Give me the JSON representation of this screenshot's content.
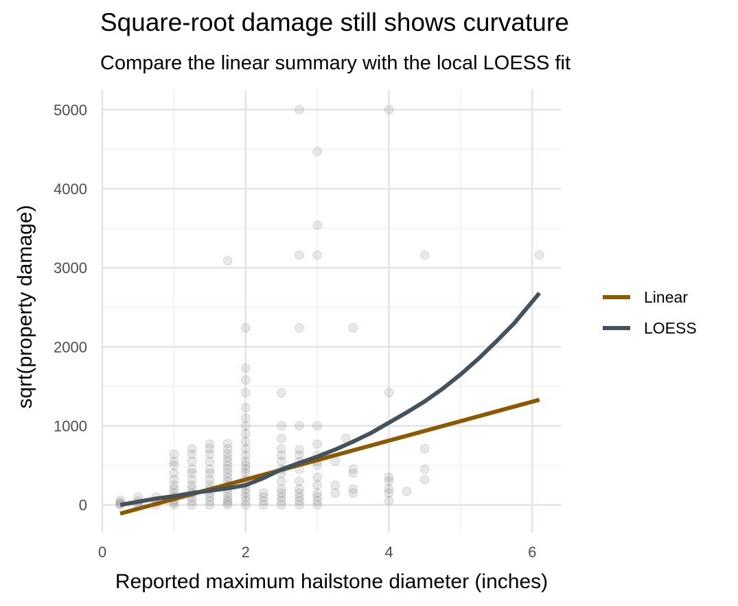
{
  "chart_data": {
    "type": "scatter",
    "title": "Square-root damage still shows curvature",
    "subtitle": "Compare the linear summary with the local LOESS fit",
    "xlabel": "Reported maximum hailstone diameter (inches)",
    "ylabel": "sqrt(property damage)",
    "xlim": [
      0,
      6.4
    ],
    "ylim": [
      -350,
      5250
    ],
    "x_ticks": [
      0,
      2,
      4,
      6
    ],
    "y_ticks": [
      0,
      1000,
      2000,
      3000,
      4000,
      5000
    ],
    "grid": true,
    "legend_position": "right",
    "points": [
      [
        0.25,
        0
      ],
      [
        0.25,
        30
      ],
      [
        0.25,
        60
      ],
      [
        0.25,
        15
      ],
      [
        0.5,
        0
      ],
      [
        0.5,
        50
      ],
      [
        0.5,
        100
      ],
      [
        0.5,
        20
      ],
      [
        0.75,
        30
      ],
      [
        0.75,
        100
      ],
      [
        0.75,
        0
      ],
      [
        1,
        0
      ],
      [
        1,
        30
      ],
      [
        1,
        60
      ],
      [
        1,
        100
      ],
      [
        1,
        150
      ],
      [
        1,
        200
      ],
      [
        1,
        250
      ],
      [
        1,
        320
      ],
      [
        1,
        400
      ],
      [
        1,
        500
      ],
      [
        1,
        550
      ],
      [
        1,
        640
      ],
      [
        1.25,
        0
      ],
      [
        1.25,
        50
      ],
      [
        1.25,
        100
      ],
      [
        1.25,
        150
      ],
      [
        1.25,
        200
      ],
      [
        1.25,
        250
      ],
      [
        1.25,
        320
      ],
      [
        1.25,
        400
      ],
      [
        1.25,
        450
      ],
      [
        1.25,
        550
      ],
      [
        1.25,
        640
      ],
      [
        1.25,
        710
      ],
      [
        1.5,
        0
      ],
      [
        1.5,
        50
      ],
      [
        1.5,
        100
      ],
      [
        1.5,
        150
      ],
      [
        1.5,
        200
      ],
      [
        1.5,
        250
      ],
      [
        1.5,
        320
      ],
      [
        1.5,
        400
      ],
      [
        1.5,
        450
      ],
      [
        1.5,
        550
      ],
      [
        1.5,
        640
      ],
      [
        1.5,
        710
      ],
      [
        1.5,
        770
      ],
      [
        1.75,
        0
      ],
      [
        1.75,
        30
      ],
      [
        1.75,
        60
      ],
      [
        1.75,
        100
      ],
      [
        1.75,
        150
      ],
      [
        1.75,
        200
      ],
      [
        1.75,
        250
      ],
      [
        1.75,
        300
      ],
      [
        1.75,
        350
      ],
      [
        1.75,
        400
      ],
      [
        1.75,
        450
      ],
      [
        1.75,
        500
      ],
      [
        1.75,
        550
      ],
      [
        1.75,
        600
      ],
      [
        1.75,
        650
      ],
      [
        1.75,
        710
      ],
      [
        1.75,
        775
      ],
      [
        1.75,
        3090
      ],
      [
        2,
        0
      ],
      [
        2,
        50
      ],
      [
        2,
        100
      ],
      [
        2,
        150
      ],
      [
        2,
        200
      ],
      [
        2,
        250
      ],
      [
        2,
        320
      ],
      [
        2,
        400
      ],
      [
        2,
        450
      ],
      [
        2,
        500
      ],
      [
        2,
        550
      ],
      [
        2,
        630
      ],
      [
        2,
        710
      ],
      [
        2,
        800
      ],
      [
        2,
        900
      ],
      [
        2,
        1000
      ],
      [
        2,
        1100
      ],
      [
        2,
        1230
      ],
      [
        2,
        1420
      ],
      [
        2,
        1580
      ],
      [
        2,
        1730
      ],
      [
        2,
        2240
      ],
      [
        2.25,
        0
      ],
      [
        2.25,
        50
      ],
      [
        2.25,
        100
      ],
      [
        2.25,
        150
      ],
      [
        2.5,
        0
      ],
      [
        2.5,
        50
      ],
      [
        2.5,
        100
      ],
      [
        2.5,
        150
      ],
      [
        2.5,
        200
      ],
      [
        2.5,
        300
      ],
      [
        2.5,
        400
      ],
      [
        2.5,
        450
      ],
      [
        2.5,
        550
      ],
      [
        2.5,
        630
      ],
      [
        2.5,
        710
      ],
      [
        2.5,
        840
      ],
      [
        2.5,
        1000
      ],
      [
        2.5,
        1420
      ],
      [
        2.75,
        0
      ],
      [
        2.75,
        50
      ],
      [
        2.75,
        100
      ],
      [
        2.75,
        150
      ],
      [
        2.75,
        200
      ],
      [
        2.75,
        300
      ],
      [
        2.75,
        450
      ],
      [
        2.75,
        550
      ],
      [
        2.75,
        630
      ],
      [
        2.75,
        700
      ],
      [
        2.75,
        1000
      ],
      [
        2.75,
        2240
      ],
      [
        2.75,
        3160
      ],
      [
        2.75,
        5000
      ],
      [
        3,
        0
      ],
      [
        3,
        50
      ],
      [
        3,
        100
      ],
      [
        3,
        150
      ],
      [
        3,
        250
      ],
      [
        3,
        350
      ],
      [
        3,
        500
      ],
      [
        3,
        550
      ],
      [
        3,
        630
      ],
      [
        3,
        770
      ],
      [
        3,
        1000
      ],
      [
        3,
        3160
      ],
      [
        3,
        3540
      ],
      [
        3,
        4470
      ],
      [
        3.25,
        150
      ],
      [
        3.25,
        250
      ],
      [
        3.25,
        550
      ],
      [
        3.4,
        840
      ],
      [
        3.5,
        150
      ],
      [
        3.5,
        200
      ],
      [
        3.5,
        400
      ],
      [
        3.5,
        450
      ],
      [
        3.5,
        2240
      ],
      [
        4,
        50
      ],
      [
        4,
        150
      ],
      [
        4,
        200
      ],
      [
        4,
        300
      ],
      [
        4,
        350
      ],
      [
        4,
        1420
      ],
      [
        4,
        5000
      ],
      [
        4.25,
        170
      ],
      [
        4.5,
        320
      ],
      [
        4.5,
        450
      ],
      [
        4.5,
        710
      ],
      [
        4.5,
        3160
      ],
      [
        6.1,
        3160
      ]
    ],
    "series": [
      {
        "name": "Linear",
        "color": "#8B5A00",
        "x": [
          0.25,
          6.1
        ],
        "y": [
          -110,
          1330
        ]
      },
      {
        "name": "LOESS",
        "color": "#44525C",
        "x": [
          0.25,
          0.5,
          0.75,
          1.0,
          1.25,
          1.5,
          1.75,
          2.0,
          2.25,
          2.5,
          2.75,
          3.0,
          3.25,
          3.5,
          3.75,
          4.0,
          4.25,
          4.5,
          4.75,
          5.0,
          5.25,
          5.5,
          5.75,
          6.1
        ],
        "y": [
          0,
          40,
          80,
          110,
          150,
          180,
          210,
          250,
          340,
          450,
          530,
          610,
          700,
          800,
          910,
          1040,
          1170,
          1310,
          1470,
          1650,
          1850,
          2070,
          2300,
          2680
        ]
      }
    ]
  }
}
